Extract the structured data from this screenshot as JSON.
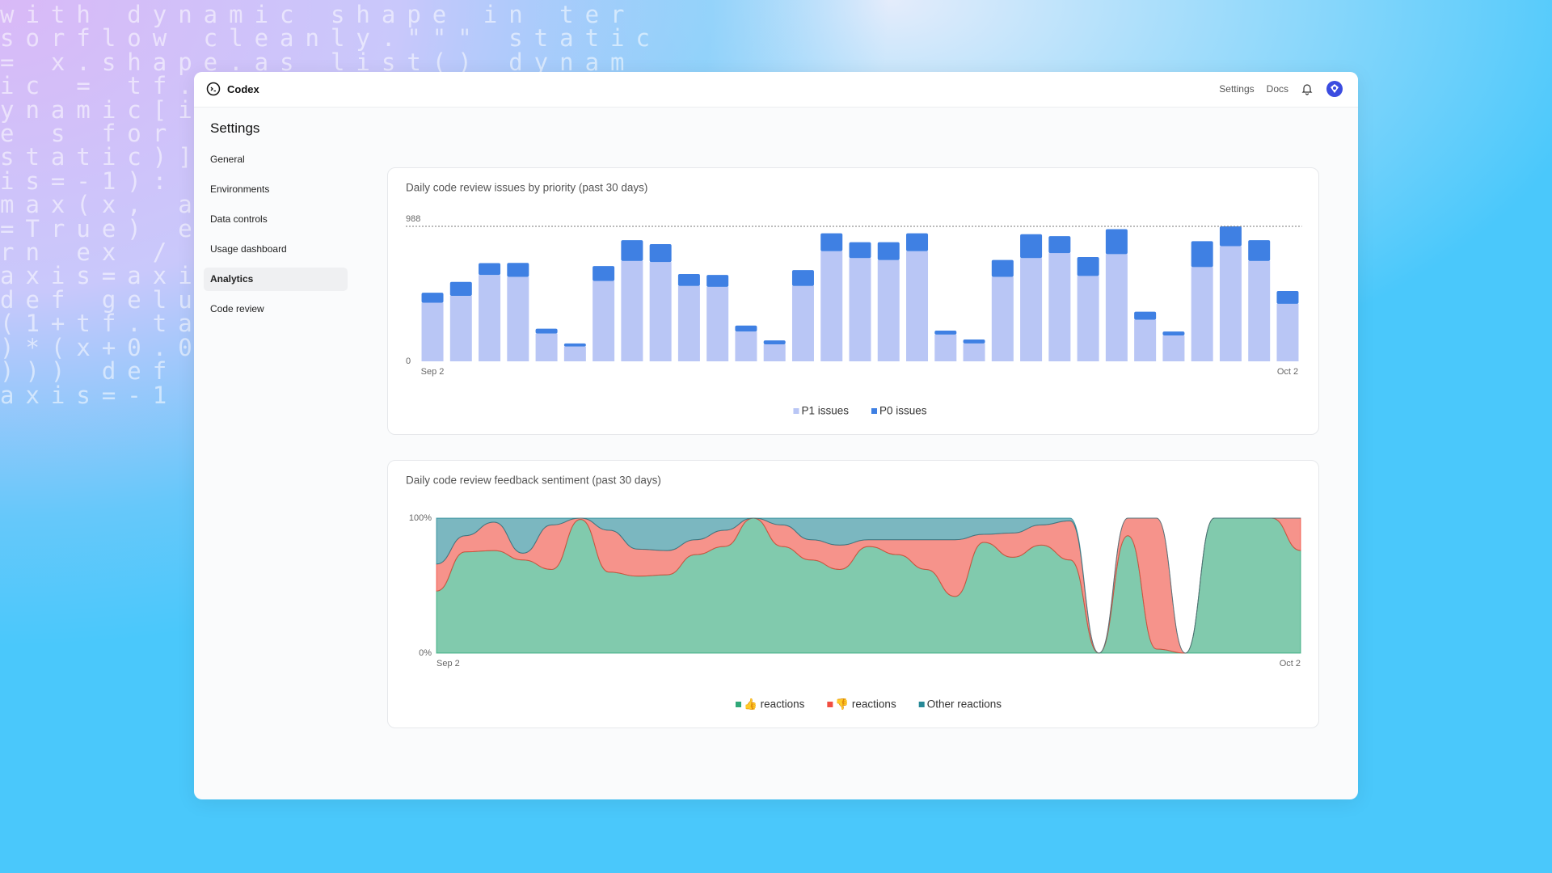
{
  "background": {
    "code_lines": [
      "with dynamic shape in ter",
      "sorflow cleanly.\"\"\" static",
      "= x.shape.as_list() dynam",
      "ic = tf.",
      "ynamic[i",
      "e s for",
      "static)]",
      "is=-1):",
      "max(x, a",
      "=True) e",
      "rn ex /",
      "axis=axi",
      "def gelu",
      "(1+tf.ta",
      ")*(x+0.0",
      "))) def",
      "axis=-1"
    ]
  },
  "header": {
    "brand": "Codex",
    "nav": [
      "Settings",
      "Docs"
    ]
  },
  "sidebar": {
    "title": "Settings",
    "items": [
      "General",
      "Environments",
      "Data controls",
      "Usage dashboard",
      "Analytics",
      "Code review"
    ],
    "active_index": 4
  },
  "chart_data": [
    {
      "type": "bar",
      "stacked": true,
      "title": "Daily code review issues by priority (past 30 days)",
      "categories": [
        "Sep 2",
        null,
        null,
        null,
        null,
        null,
        null,
        null,
        null,
        null,
        null,
        null,
        null,
        null,
        null,
        null,
        null,
        null,
        null,
        null,
        null,
        null,
        null,
        null,
        null,
        null,
        null,
        null,
        null,
        null,
        "Oct 2"
      ],
      "series": [
        {
          "name": "P1 issues",
          "color": "#b9c6f5",
          "values": [
            429,
            479,
            632,
            618,
            203,
            109,
            588,
            734,
            727,
            552,
            545,
            218,
            124,
            552,
            806,
            756,
            741,
            806,
            196,
            131,
            618,
            756,
            792,
            625,
            785,
            305,
            189,
            690,
            843,
            734,
            421
          ]
        },
        {
          "name": "P0 issues",
          "color": "#3f80e3",
          "values": [
            73,
            102,
            87,
            102,
            36,
            22,
            109,
            153,
            131,
            87,
            87,
            44,
            29,
            116,
            131,
            116,
            131,
            131,
            29,
            29,
            124,
            174,
            124,
            138,
            182,
            58,
            29,
            189,
            145,
            153,
            94
          ]
        }
      ],
      "ylim": [
        0,
        988
      ],
      "yticks": [
        0,
        988
      ],
      "grid": true
    },
    {
      "type": "area",
      "stacked": true,
      "title": "Daily code review feedback sentiment (past 30 days)",
      "categories": [
        "Sep 2",
        null,
        null,
        null,
        null,
        null,
        null,
        null,
        null,
        null,
        null,
        null,
        null,
        null,
        null,
        null,
        null,
        null,
        null,
        null,
        null,
        null,
        null,
        null,
        null,
        null,
        null,
        null,
        null,
        null,
        "Oct 2"
      ],
      "series": [
        {
          "name": "👍 reactions",
          "color": "#1a9e6a",
          "values": [
            46,
            75,
            76,
            69,
            62,
            99,
            60,
            57,
            58,
            73,
            79,
            100,
            79,
            69,
            62,
            79,
            73,
            62,
            42,
            82,
            71,
            80,
            69,
            0,
            87,
            3,
            0,
            100,
            100,
            100,
            76
          ]
        },
        {
          "name": "👎 reactions",
          "color": "#ef3b2c",
          "values": [
            20,
            12,
            21,
            5,
            33,
            1,
            31,
            20,
            18,
            11,
            12,
            0,
            16,
            15,
            18,
            5,
            11,
            22,
            42,
            6,
            18,
            15,
            29,
            0,
            13,
            97,
            0,
            0,
            0,
            0,
            24
          ]
        },
        {
          "name": "Other reactions",
          "color": "#0f7c8c",
          "values": [
            34,
            13,
            3,
            26,
            5,
            0,
            9,
            23,
            24,
            16,
            9,
            0,
            5,
            16,
            20,
            16,
            16,
            16,
            16,
            12,
            11,
            5,
            2,
            0,
            0,
            0,
            0,
            0,
            0,
            0,
            0
          ]
        }
      ],
      "ylim": [
        0,
        100
      ],
      "yticks": [
        {
          "value": 0,
          "label": "0%"
        },
        {
          "value": 100,
          "label": "100%"
        }
      ]
    }
  ]
}
